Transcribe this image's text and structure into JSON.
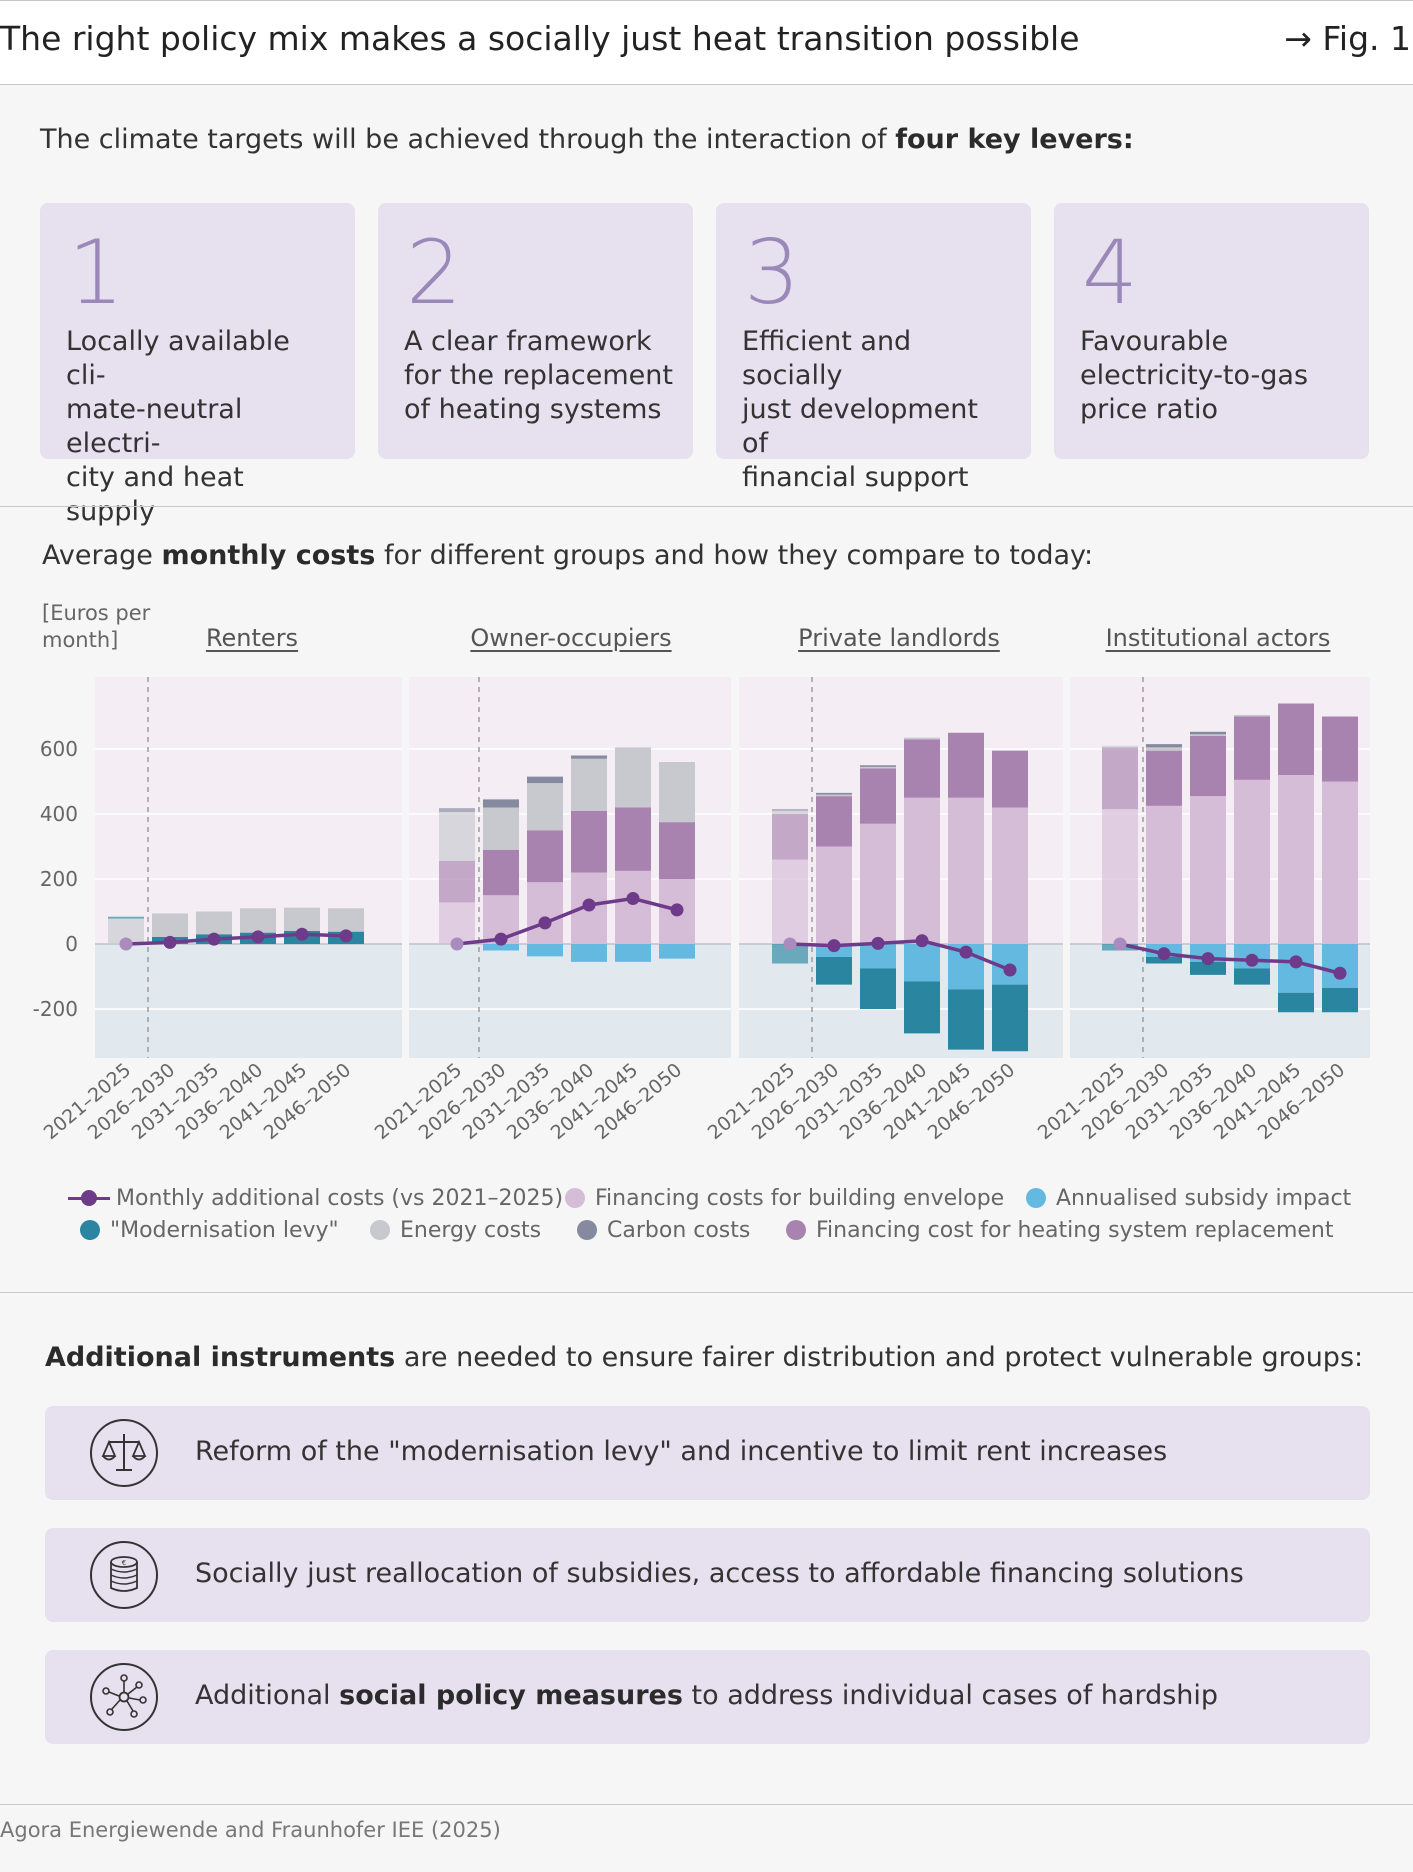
{
  "header": {
    "title": "The right policy mix makes a socially just heat transition possible",
    "fig": "→ Fig. 1"
  },
  "intro": {
    "text_pre": "The climate targets will be achieved through the interaction of ",
    "text_bold": "four key levers:"
  },
  "levers": [
    {
      "number": "1",
      "text": "Locally available cli-mate-neutral electri-city and heat supply",
      "lines": [
        "Locally available cli-",
        "mate-neutral electri-",
        "city and heat supply"
      ]
    },
    {
      "number": "2",
      "text": "A clear framework for the replacement of heating systems",
      "lines": [
        "A clear framework",
        "for the replacement",
        "of heating systems"
      ]
    },
    {
      "number": "3",
      "text": "Efficient and socially just development of financial support",
      "lines": [
        "Efficient and socially",
        "just development of",
        "financial support"
      ]
    },
    {
      "number": "4",
      "text": "Favourable electricity-to-gas price ratio",
      "lines": [
        "Favourable",
        "electricity-to-gas",
        "price ratio"
      ]
    }
  ],
  "costs": {
    "subtitle_pre": "Average ",
    "subtitle_bold": "monthly costs",
    "subtitle_post": " for different groups and how they compare to today:",
    "unit_line1": "[Euros per",
    "unit_line2": "month]"
  },
  "legend": [
    {
      "key": "line",
      "label": "Monthly additional costs (vs 2021–2025)"
    },
    {
      "key": "envelope",
      "label": "Financing costs for building envelope"
    },
    {
      "key": "subsidy",
      "label": "Annualised subsidy impact"
    },
    {
      "key": "levy",
      "label": "\"Modernisation levy\""
    },
    {
      "key": "energy",
      "label": "Energy costs"
    },
    {
      "key": "carbon",
      "label": "Carbon costs"
    },
    {
      "key": "heating",
      "label": "Financing cost for heating system replacement"
    }
  ],
  "colors": {
    "envelope": "#d5bcd7",
    "heating": "#a983b0",
    "energy": "#c8c9cf",
    "carbon": "#868a9e",
    "levy": "#2a86a0",
    "subsidy": "#64b9e1",
    "line": "#6e3b8a",
    "positive_bg": "#f4eef4",
    "negative_bg": "#e1e8ee"
  },
  "chart_data": {
    "type": "bar",
    "categories": [
      "2021–2025",
      "2026–2030",
      "2031–2035",
      "2036–2040",
      "2041–2045",
      "2046–2050"
    ],
    "ylim": [
      -350,
      820
    ],
    "yticks": [
      600,
      400,
      200,
      0,
      -200
    ],
    "groups": [
      {
        "name": "Renters",
        "positive": {
          "levy": [
            0,
            22,
            30,
            35,
            40,
            38
          ],
          "carbon": [
            0,
            0,
            0,
            0,
            0,
            0
          ],
          "energy": [
            78,
            72,
            70,
            75,
            72,
            72
          ],
          "heating": [
            0,
            0,
            0,
            0,
            0,
            0
          ],
          "envelope": [
            0,
            0,
            0,
            0,
            0,
            0
          ],
          "past_carbon": [
            6,
            0,
            0,
            0,
            0,
            0
          ]
        },
        "negative": {
          "subsidy": [
            0,
            0,
            0,
            0,
            0,
            0
          ],
          "levy": [
            0,
            0,
            0,
            0,
            0,
            0
          ]
        },
        "line": [
          0,
          5,
          15,
          22,
          30,
          25
        ]
      },
      {
        "name": "Owner-occupiers",
        "positive": {
          "envelope": [
            128,
            150,
            190,
            220,
            225,
            200
          ],
          "heating": [
            128,
            140,
            160,
            190,
            195,
            175
          ],
          "energy": [
            150,
            130,
            145,
            160,
            185,
            185
          ],
          "carbon": [
            12,
            25,
            20,
            10,
            0,
            0
          ],
          "levy": [
            0,
            0,
            0,
            0,
            0,
            0
          ]
        },
        "negative": {
          "subsidy": [
            0,
            20,
            38,
            55,
            55,
            45
          ],
          "levy": [
            0,
            0,
            0,
            0,
            0,
            0
          ]
        },
        "line": [
          0,
          15,
          65,
          120,
          140,
          105
        ]
      },
      {
        "name": "Private landlords",
        "positive": {
          "envelope": [
            260,
            300,
            370,
            450,
            450,
            420
          ],
          "heating": [
            140,
            155,
            170,
            180,
            200,
            175
          ],
          "energy": [
            10,
            5,
            5,
            5,
            0,
            0
          ],
          "carbon": [
            5,
            5,
            5,
            0,
            0,
            0
          ],
          "levy": [
            0,
            0,
            0,
            0,
            0,
            0
          ]
        },
        "negative": {
          "subsidy": [
            0,
            40,
            75,
            115,
            140,
            125
          ],
          "levy": [
            60,
            85,
            125,
            160,
            185,
            205
          ]
        },
        "line": [
          0,
          -5,
          2,
          10,
          -25,
          -80
        ]
      },
      {
        "name": "Institutional actors",
        "positive": {
          "envelope": [
            415,
            425,
            455,
            505,
            520,
            500
          ],
          "heating": [
            190,
            170,
            185,
            195,
            220,
            200
          ],
          "energy": [
            5,
            10,
            5,
            5,
            0,
            0
          ],
          "carbon": [
            0,
            10,
            8,
            0,
            0,
            0
          ],
          "levy": [
            0,
            0,
            0,
            0,
            0,
            0
          ]
        },
        "negative": {
          "subsidy": [
            0,
            40,
            55,
            75,
            150,
            135
          ],
          "levy": [
            20,
            20,
            40,
            50,
            60,
            75
          ]
        },
        "line": [
          0,
          -30,
          -45,
          -50,
          -55,
          -90
        ]
      }
    ]
  },
  "instruments": {
    "title_bold": "Additional instruments",
    "title_post": " are needed to ensure fairer distribution and protect vulnerable groups:",
    "items": [
      {
        "icon": "scales-icon",
        "pre": "Reform of the \"modernisation levy\" and incentive to limit rent increases",
        "bold": "",
        "post": ""
      },
      {
        "icon": "coins-icon",
        "pre": "Socially just reallocation of subsidies, access to affordable financing solutions",
        "bold": "",
        "post": ""
      },
      {
        "icon": "network-icon",
        "pre": "Additional ",
        "bold": "social policy measures",
        "post": " to address individual cases of hardship"
      }
    ]
  },
  "source": "Agora Energiewende and Fraunhofer IEE (2025)"
}
